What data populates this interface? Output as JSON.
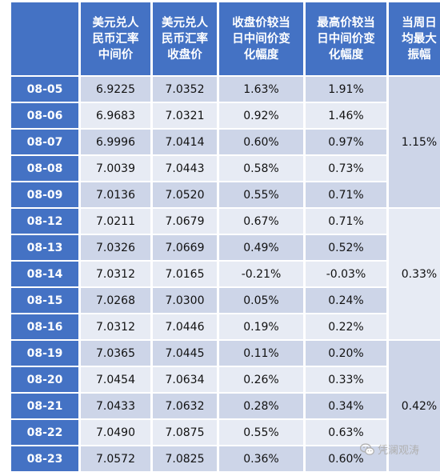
{
  "headers": {
    "blank": "",
    "mid_rate": "美元兑人\n民币汇率\n中间价",
    "close_rate": "美元兑人\n民币汇率\n收盘价",
    "close_vs_mid": "收盘价较当\n日中间价变\n化幅度",
    "high_vs_mid": "最高价较当\n日中间价变\n化幅度",
    "weekly_amp": "当周日\n均最大\n振幅"
  },
  "rows": [
    {
      "date": "08-05",
      "mid": "6.9225",
      "close": "7.0352",
      "close_chg": "1.63%",
      "high_chg": "1.91%"
    },
    {
      "date": "08-06",
      "mid": "6.9683",
      "close": "7.0321",
      "close_chg": "0.92%",
      "high_chg": "1.46%"
    },
    {
      "date": "08-07",
      "mid": "6.9996",
      "close": "7.0414",
      "close_chg": "0.60%",
      "high_chg": "0.97%"
    },
    {
      "date": "08-08",
      "mid": "7.0039",
      "close": "7.0443",
      "close_chg": "0.58%",
      "high_chg": "0.73%"
    },
    {
      "date": "08-09",
      "mid": "7.0136",
      "close": "7.0520",
      "close_chg": "0.55%",
      "high_chg": "0.71%"
    },
    {
      "date": "08-12",
      "mid": "7.0211",
      "close": "7.0679",
      "close_chg": "0.67%",
      "high_chg": "0.71%"
    },
    {
      "date": "08-13",
      "mid": "7.0326",
      "close": "7.0669",
      "close_chg": "0.49%",
      "high_chg": "0.52%"
    },
    {
      "date": "08-14",
      "mid": "7.0312",
      "close": "7.0165",
      "close_chg": "-0.21%",
      "high_chg": "-0.03%"
    },
    {
      "date": "08-15",
      "mid": "7.0268",
      "close": "7.0300",
      "close_chg": "0.05%",
      "high_chg": "0.24%"
    },
    {
      "date": "08-16",
      "mid": "7.0312",
      "close": "7.0446",
      "close_chg": "0.19%",
      "high_chg": "0.22%"
    },
    {
      "date": "08-19",
      "mid": "7.0365",
      "close": "7.0445",
      "close_chg": "0.11%",
      "high_chg": "0.20%"
    },
    {
      "date": "08-20",
      "mid": "7.0454",
      "close": "7.0634",
      "close_chg": "0.26%",
      "high_chg": "0.33%"
    },
    {
      "date": "08-21",
      "mid": "7.0433",
      "close": "7.0632",
      "close_chg": "0.28%",
      "high_chg": "0.34%"
    },
    {
      "date": "08-22",
      "mid": "7.0490",
      "close": "7.0875",
      "close_chg": "0.55%",
      "high_chg": "0.63%"
    },
    {
      "date": "08-23",
      "mid": "7.0572",
      "close": "7.0825",
      "close_chg": "0.36%",
      "high_chg": "0.60%"
    }
  ],
  "weekly_amplitude": [
    "1.15%",
    "0.33%",
    "0.42%"
  ],
  "watermark": {
    "text": "凭澜观涛",
    "icon": "wechat-icon"
  },
  "colors": {
    "header": "#4472c4",
    "band_dark": "#cdd5e8",
    "band_light": "#e7ebf4"
  }
}
